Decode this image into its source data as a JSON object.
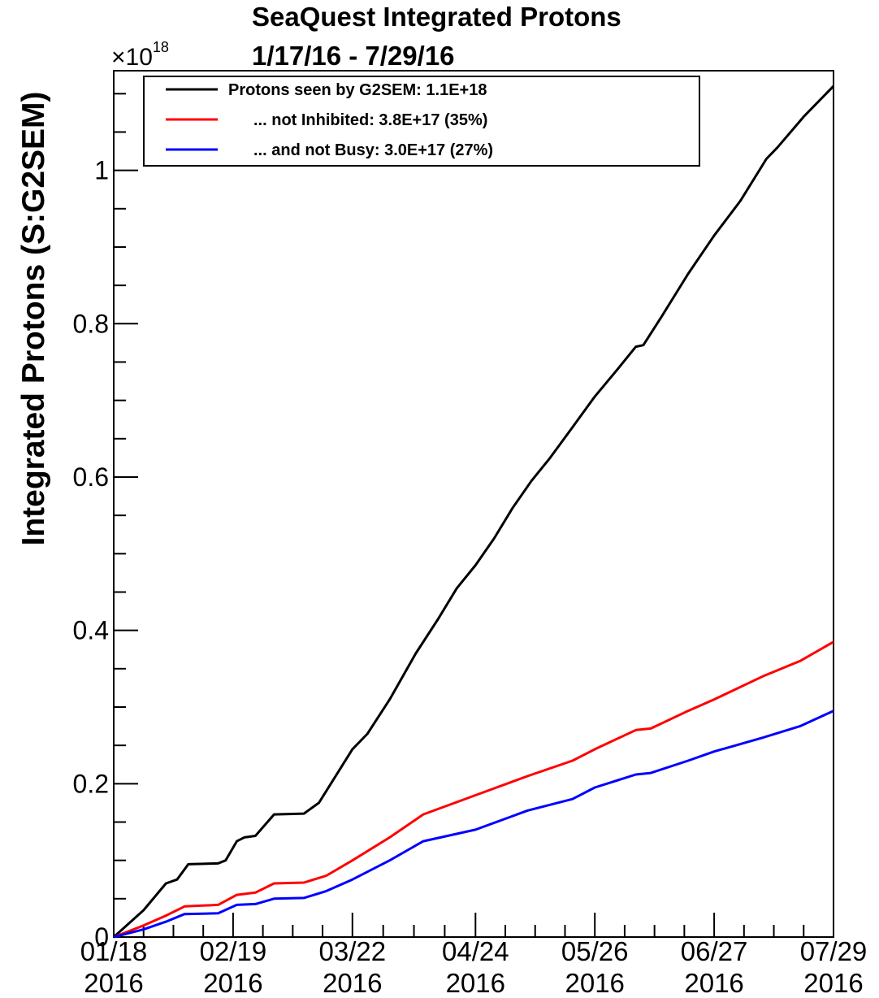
{
  "chart_data": {
    "type": "line",
    "title": "SeaQuest Integrated Protons",
    "subtitle": "1/17/16 - 7/29/16",
    "ylabel": "Integrated Protons (S:G2SEM)",
    "xlabel": "",
    "y_multiplier": "×10",
    "y_multiplier_exp": "18",
    "ylim": [
      0,
      1.13
    ],
    "y_ticks": [
      0,
      0.2,
      0.4,
      0.6,
      0.8,
      1
    ],
    "y_tick_labels": [
      "0",
      "0.2",
      "0.4",
      "0.6",
      "0.8",
      "1"
    ],
    "xlim": [
      "2016-01-18",
      "2016-07-29"
    ],
    "x_tick_dates": [
      "2016-01-18",
      "2016-02-19",
      "2016-03-22",
      "2016-04-24",
      "2016-05-26",
      "2016-06-27",
      "2016-07-29"
    ],
    "x_tick_labels": [
      {
        "date": "01/18",
        "year": "2016"
      },
      {
        "date": "02/19",
        "year": "2016"
      },
      {
        "date": "03/22",
        "year": "2016"
      },
      {
        "date": "04/24",
        "year": "2016"
      },
      {
        "date": "05/26",
        "year": "2016"
      },
      {
        "date": "06/27",
        "year": "2016"
      },
      {
        "date": "07/29",
        "year": "2016"
      }
    ],
    "legend_position": "top",
    "series": [
      {
        "name": "Protons seen by G2SEM: 1.1E+18",
        "color": "#000000",
        "points": [
          [
            "2016-01-18",
            0
          ],
          [
            "2016-01-26",
            0.035
          ],
          [
            "2016-02-01",
            0.07
          ],
          [
            "2016-02-04",
            0.075
          ],
          [
            "2016-02-07",
            0.095
          ],
          [
            "2016-02-15",
            0.096
          ],
          [
            "2016-02-17",
            0.1
          ],
          [
            "2016-02-20",
            0.125
          ],
          [
            "2016-02-22",
            0.13
          ],
          [
            "2016-02-25",
            0.132
          ],
          [
            "2016-03-01",
            0.16
          ],
          [
            "2016-03-09",
            0.161
          ],
          [
            "2016-03-13",
            0.175
          ],
          [
            "2016-03-22",
            0.245
          ],
          [
            "2016-03-26",
            0.265
          ],
          [
            "2016-04-01",
            0.31
          ],
          [
            "2016-04-08",
            0.37
          ],
          [
            "2016-04-14",
            0.415
          ],
          [
            "2016-04-19",
            0.455
          ],
          [
            "2016-04-24",
            0.485
          ],
          [
            "2016-04-29",
            0.52
          ],
          [
            "2016-05-04",
            0.56
          ],
          [
            "2016-05-09",
            0.595
          ],
          [
            "2016-05-14",
            0.625
          ],
          [
            "2016-05-20",
            0.665
          ],
          [
            "2016-05-26",
            0.705
          ],
          [
            "2016-06-01",
            0.74
          ],
          [
            "2016-06-06",
            0.77
          ],
          [
            "2016-06-08",
            0.772
          ],
          [
            "2016-06-13",
            0.81
          ],
          [
            "2016-06-20",
            0.865
          ],
          [
            "2016-06-27",
            0.915
          ],
          [
            "2016-07-04",
            0.96
          ],
          [
            "2016-07-11",
            1.015
          ],
          [
            "2016-07-14",
            1.03
          ],
          [
            "2016-07-21",
            1.07
          ],
          [
            "2016-07-29",
            1.11
          ]
        ]
      },
      {
        "name": "... not Inhibited: 3.8E+17 (35%)",
        "color": "#ff0000",
        "points": [
          [
            "2016-01-18",
            0
          ],
          [
            "2016-01-26",
            0.015
          ],
          [
            "2016-02-01",
            0.028
          ],
          [
            "2016-02-06",
            0.04
          ],
          [
            "2016-02-15",
            0.042
          ],
          [
            "2016-02-20",
            0.055
          ],
          [
            "2016-02-25",
            0.058
          ],
          [
            "2016-03-01",
            0.07
          ],
          [
            "2016-03-09",
            0.071
          ],
          [
            "2016-03-15",
            0.08
          ],
          [
            "2016-03-22",
            0.1
          ],
          [
            "2016-04-01",
            0.13
          ],
          [
            "2016-04-10",
            0.16
          ],
          [
            "2016-04-24",
            0.185
          ],
          [
            "2016-05-08",
            0.21
          ],
          [
            "2016-05-20",
            0.23
          ],
          [
            "2016-05-26",
            0.245
          ],
          [
            "2016-06-06",
            0.27
          ],
          [
            "2016-06-10",
            0.272
          ],
          [
            "2016-06-20",
            0.295
          ],
          [
            "2016-06-27",
            0.31
          ],
          [
            "2016-07-10",
            0.34
          ],
          [
            "2016-07-20",
            0.36
          ],
          [
            "2016-07-29",
            0.385
          ]
        ]
      },
      {
        "name": "... and not Busy: 3.0E+17 (27%)",
        "color": "#0000ff",
        "points": [
          [
            "2016-01-18",
            0
          ],
          [
            "2016-01-26",
            0.01
          ],
          [
            "2016-02-01",
            0.02
          ],
          [
            "2016-02-06",
            0.03
          ],
          [
            "2016-02-15",
            0.031
          ],
          [
            "2016-02-20",
            0.042
          ],
          [
            "2016-02-25",
            0.043
          ],
          [
            "2016-03-01",
            0.05
          ],
          [
            "2016-03-09",
            0.051
          ],
          [
            "2016-03-15",
            0.06
          ],
          [
            "2016-03-22",
            0.075
          ],
          [
            "2016-04-01",
            0.1
          ],
          [
            "2016-04-10",
            0.125
          ],
          [
            "2016-04-24",
            0.14
          ],
          [
            "2016-05-08",
            0.165
          ],
          [
            "2016-05-20",
            0.18
          ],
          [
            "2016-05-26",
            0.195
          ],
          [
            "2016-06-06",
            0.212
          ],
          [
            "2016-06-10",
            0.214
          ],
          [
            "2016-06-20",
            0.23
          ],
          [
            "2016-06-27",
            0.242
          ],
          [
            "2016-07-10",
            0.26
          ],
          [
            "2016-07-20",
            0.275
          ],
          [
            "2016-07-29",
            0.295
          ]
        ]
      }
    ]
  }
}
